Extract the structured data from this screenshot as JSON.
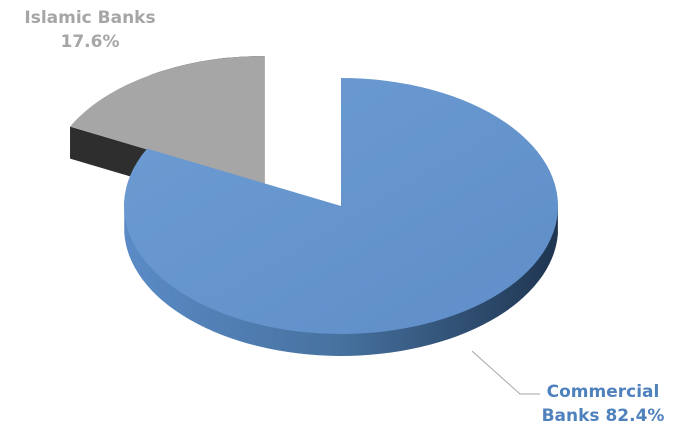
{
  "chart_data": {
    "type": "pie",
    "style": "3d-exploded",
    "slices": [
      {
        "label": "Commercial Banks",
        "value": 82.4,
        "value_label": "82.4%",
        "color": "#6a98d0",
        "side_color": "#3f6897"
      },
      {
        "label": "Islamic Banks",
        "value": 17.6,
        "value_label": "17.6%",
        "color": "#a6a6a6",
        "side_color": "#404040"
      }
    ],
    "legend": "none"
  },
  "labels": {
    "islamic_name": "Islamic Banks",
    "islamic_pct": "17.6%",
    "commercial_name_line1": "Commercial",
    "commercial_name_line2": "Banks",
    "commercial_pct": "82.4%"
  }
}
